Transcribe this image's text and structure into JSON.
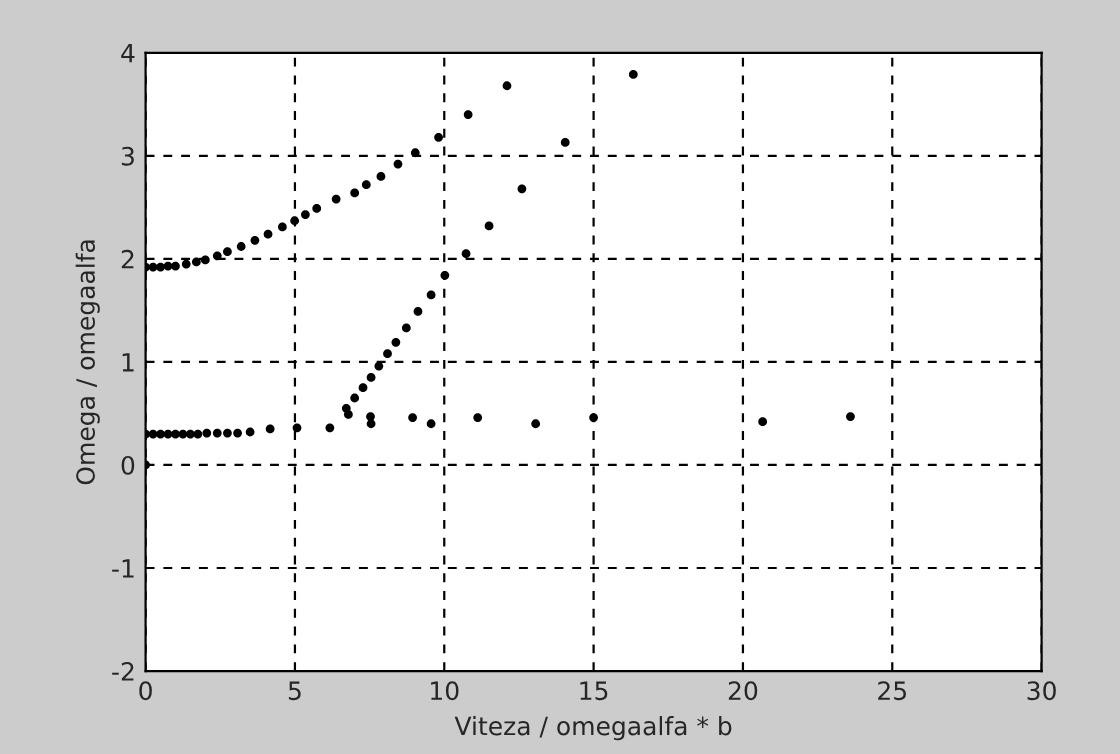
{
  "chart_data": {
    "type": "scatter",
    "xlabel": "Viteza / omegaalfa * b",
    "ylabel": "Omega / omegaalfa",
    "series": [
      {
        "color": "#000000",
        "x": [
          0,
          0.25,
          0.5,
          0.75,
          1.0,
          1.36,
          1.7,
          2.0,
          2.4,
          2.74,
          3.2,
          3.66,
          4.1,
          4.58,
          4.99,
          5.35,
          5.73,
          6.38,
          7.0,
          7.39,
          7.88,
          8.45,
          9.03,
          9.81,
          10.8,
          12.1,
          16.33,
          14.05,
          12.6,
          11.5,
          10.73,
          10.02,
          9.56,
          9.12,
          8.73,
          8.38,
          8.1,
          7.81,
          7.55,
          7.28,
          7.0,
          6.72,
          6.79,
          0,
          0.25,
          0.5,
          0.75,
          1.0,
          1.25,
          1.5,
          1.75,
          2.05,
          2.4,
          2.74,
          3.08,
          3.5,
          4.17,
          5.07,
          6.17,
          7.53,
          7.55,
          8.94,
          9.56,
          11.12,
          13.06,
          15.0,
          20.66,
          23.6,
          0
        ],
        "values": [
          1.92,
          1.92,
          1.92,
          1.93,
          1.93,
          1.95,
          1.97,
          1.99,
          2.03,
          2.07,
          2.12,
          2.18,
          2.24,
          2.31,
          2.37,
          2.43,
          2.49,
          2.58,
          2.64,
          2.72,
          2.8,
          2.92,
          3.03,
          3.18,
          3.4,
          3.68,
          3.79,
          3.13,
          2.68,
          2.32,
          2.05,
          1.84,
          1.65,
          1.49,
          1.33,
          1.19,
          1.08,
          0.96,
          0.85,
          0.75,
          0.65,
          0.55,
          0.49,
          0.3,
          0.3,
          0.3,
          0.3,
          0.3,
          0.3,
          0.3,
          0.3,
          0.31,
          0.31,
          0.31,
          0.31,
          0.32,
          0.35,
          0.36,
          0.36,
          0.47,
          0.4,
          0.46,
          0.4,
          0.46,
          0.4,
          0.46,
          0.42,
          0.47,
          0
        ]
      }
    ],
    "xlim": [
      0,
      30
    ],
    "ylim": [
      -2,
      4
    ],
    "xticks": [
      0,
      5,
      10,
      15,
      20,
      25,
      30
    ],
    "yticks": [
      -2,
      -1,
      0,
      1,
      2,
      3,
      4
    ],
    "grid": true,
    "marker": "circle"
  }
}
